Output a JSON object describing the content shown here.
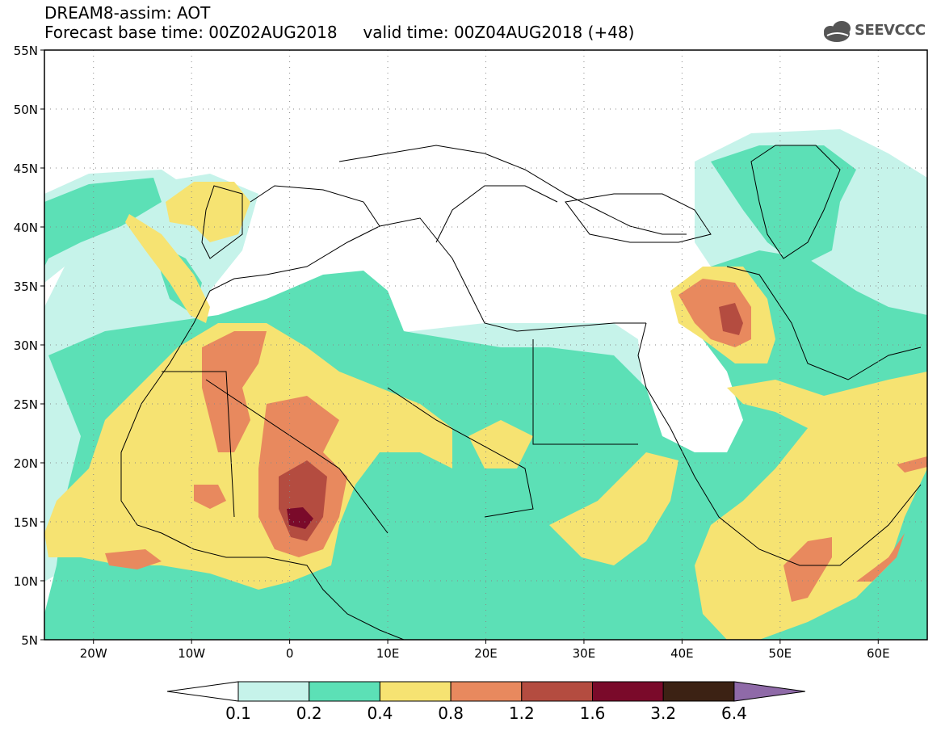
{
  "title": {
    "line1": "DREAM8-assim: AOT",
    "base_label": "Forecast base time: 00Z02AUG2018",
    "valid_label": "valid time: 00Z04AUG2018 (+48)"
  },
  "logo": {
    "text": "SEEVCCC",
    "icon": "cloud-icon"
  },
  "map": {
    "lon_range": [
      -25,
      65
    ],
    "lat_range": [
      5,
      55
    ],
    "lat_ticks": [
      {
        "value": 55,
        "label": "55N"
      },
      {
        "value": 50,
        "label": "50N"
      },
      {
        "value": 45,
        "label": "45N"
      },
      {
        "value": 40,
        "label": "40N"
      },
      {
        "value": 35,
        "label": "35N"
      },
      {
        "value": 30,
        "label": "30N"
      },
      {
        "value": 25,
        "label": "25N"
      },
      {
        "value": 20,
        "label": "20N"
      },
      {
        "value": 15,
        "label": "15N"
      },
      {
        "value": 10,
        "label": "10N"
      },
      {
        "value": 5,
        "label": "5N"
      }
    ],
    "lon_ticks": [
      {
        "value": -20,
        "label": "20W"
      },
      {
        "value": -10,
        "label": "10W"
      },
      {
        "value": 0,
        "label": "0"
      },
      {
        "value": 10,
        "label": "10E"
      },
      {
        "value": 20,
        "label": "20E"
      },
      {
        "value": 30,
        "label": "30E"
      },
      {
        "value": 40,
        "label": "40E"
      },
      {
        "value": 50,
        "label": "50E"
      },
      {
        "value": 60,
        "label": "60E"
      }
    ],
    "grid": "dotted"
  },
  "colorbar": {
    "levels": [
      "0.1",
      "0.2",
      "0.4",
      "0.8",
      "1.2",
      "1.6",
      "3.2",
      "6.4"
    ],
    "colors": [
      "#ffffff",
      "#c6f3ea",
      "#5ce0b6",
      "#f6e372",
      "#e8895e",
      "#b44c40",
      "#7a0a2a",
      "#3c2214",
      "#8f6aa8"
    ]
  }
}
